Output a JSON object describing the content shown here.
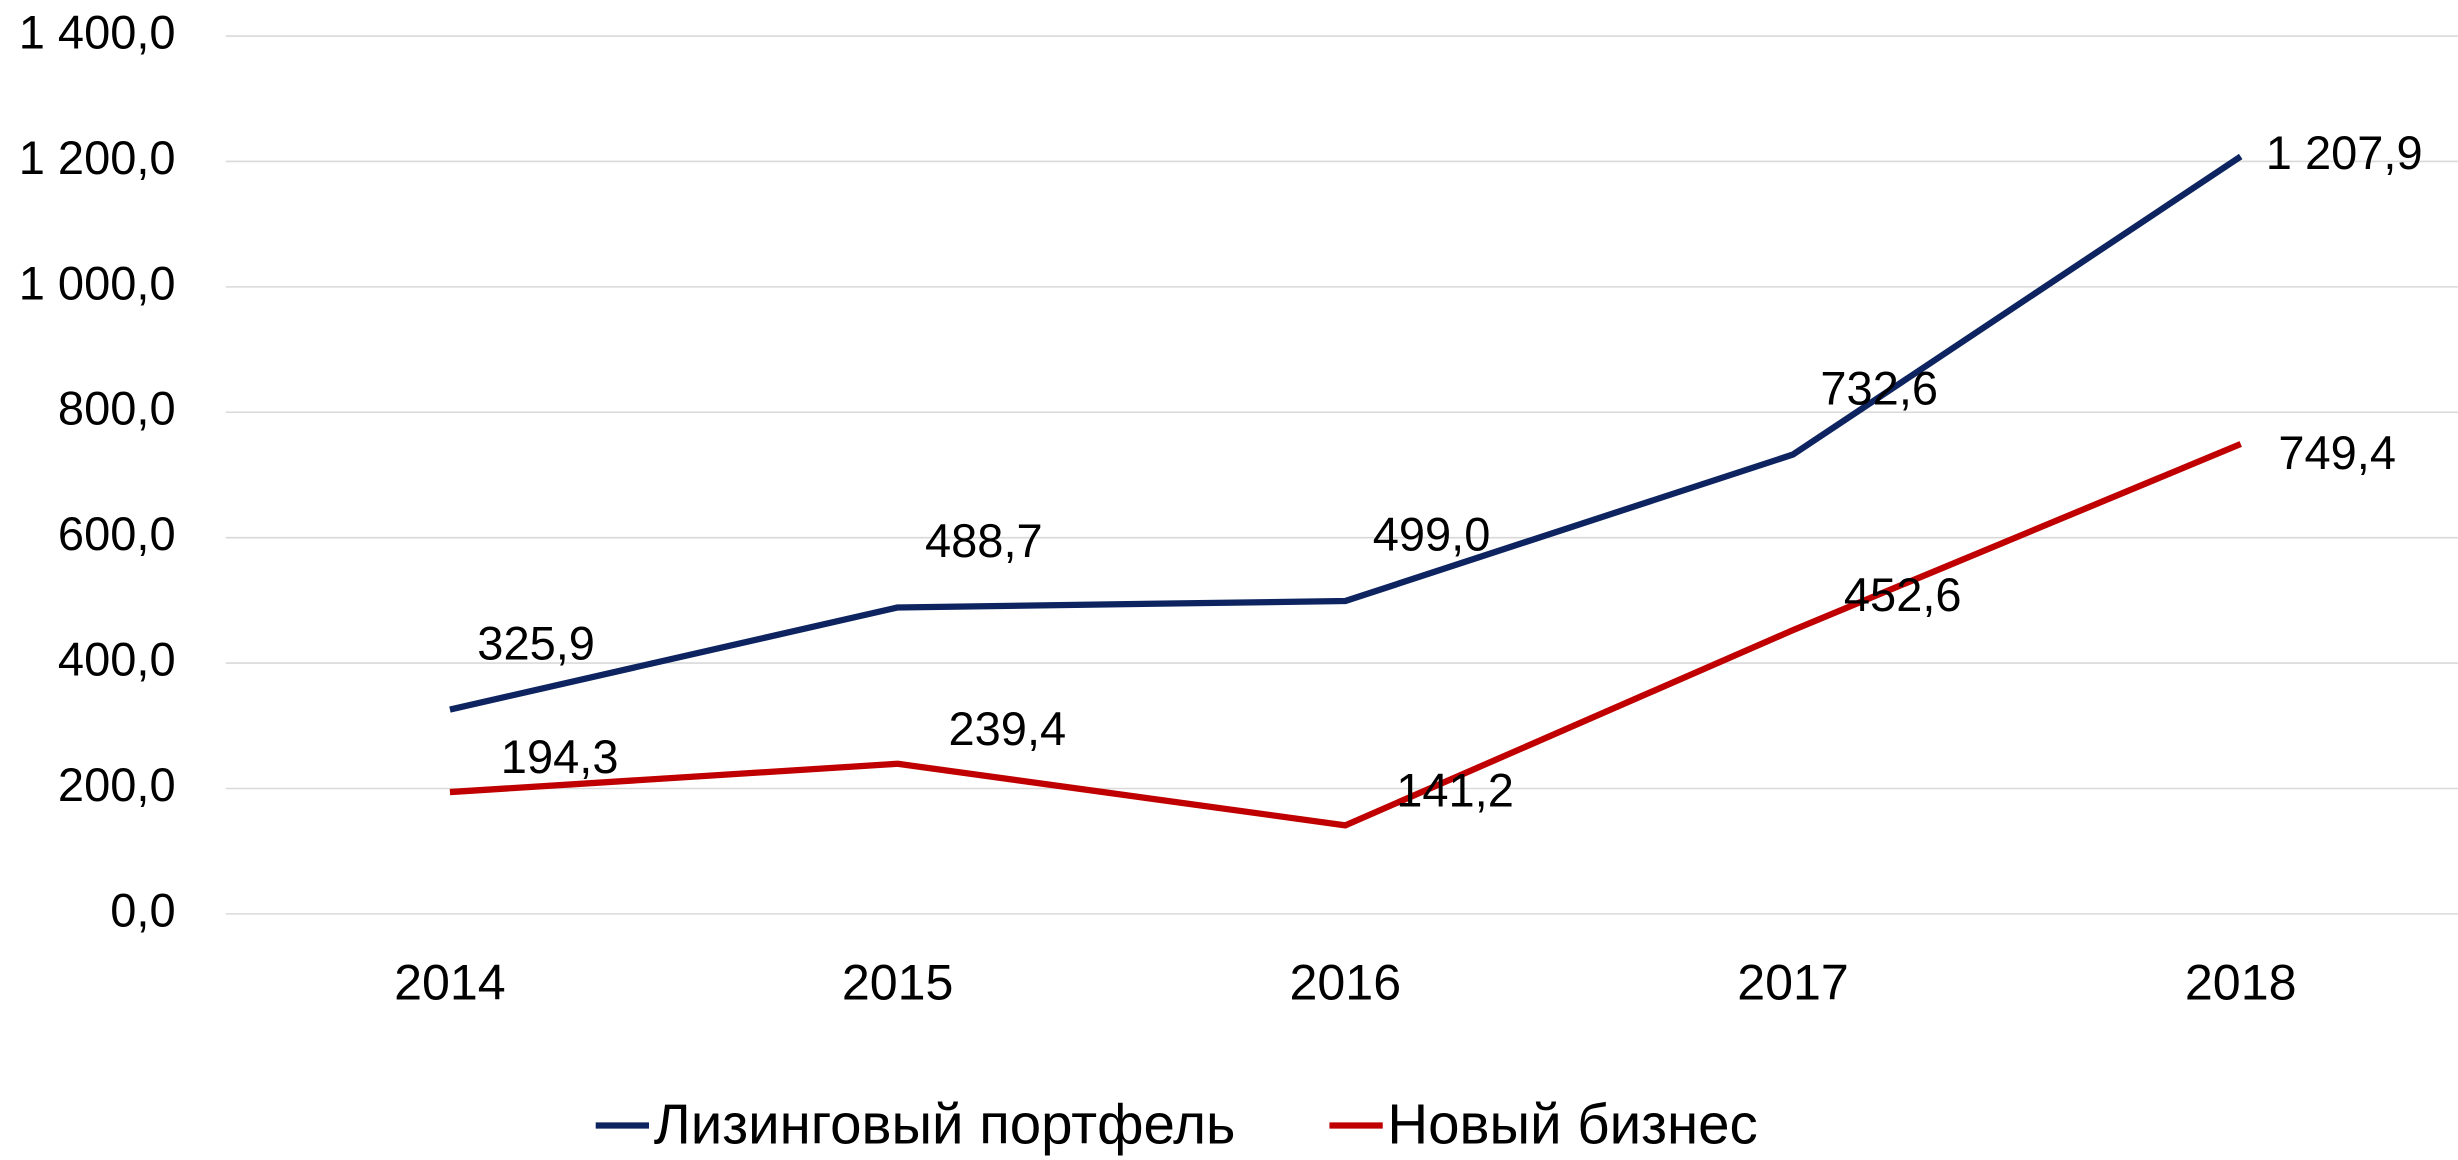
{
  "chart_data": {
    "type": "line",
    "categories": [
      "2014",
      "2015",
      "2016",
      "2017",
      "2018"
    ],
    "series": [
      {
        "name": "Лизинговый портфель",
        "color": "#0d2460",
        "values": [
          325.9,
          488.7,
          499.0,
          732.6,
          1207.9
        ],
        "value_labels": [
          "325,9",
          "488,7",
          "499,0",
          "732,6",
          "1 207,9"
        ]
      },
      {
        "name": "Новый бизнес",
        "color": "#c00000",
        "values": [
          194.3,
          239.4,
          141.2,
          452.6,
          749.4
        ],
        "value_labels": [
          "194,3",
          "239,4",
          "141,2",
          "452,6",
          "749,4"
        ]
      }
    ],
    "ylim": [
      0,
      1400
    ],
    "yticks": [
      {
        "value": 0,
        "label": "0,0"
      },
      {
        "value": 200,
        "label": "200,0"
      },
      {
        "value": 400,
        "label": "400,0"
      },
      {
        "value": 600,
        "label": "600,0"
      },
      {
        "value": 800,
        "label": "800,0"
      },
      {
        "value": 1000,
        "label": "1 000,0"
      },
      {
        "value": 1200,
        "label": "1 200,0"
      },
      {
        "value": 1400,
        "label": "1 400,0"
      }
    ],
    "grid": true,
    "legend": "bottom"
  }
}
